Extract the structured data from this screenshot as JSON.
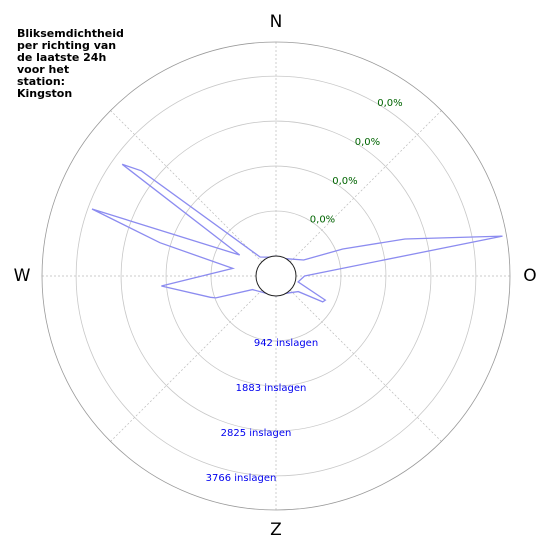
{
  "chart_data": {
    "type": "polar",
    "title_lines": [
      "Bliksemdichtheid",
      "per richting van",
      "de laatste 24h",
      "voor het",
      "station:",
      "Kingston"
    ],
    "directions": [
      {
        "value": 0,
        "label": "N"
      },
      {
        "value": 90,
        "label": "O"
      },
      {
        "value": 180,
        "label": "Z"
      },
      {
        "value": 270,
        "label": "W"
      }
    ],
    "x": [
      0,
      30,
      60,
      68,
      74,
      80,
      90,
      105,
      116,
      119,
      125,
      150,
      180,
      210,
      240,
      250,
      252,
      265,
      280,
      286,
      290,
      300,
      306,
      308,
      320,
      340
    ],
    "series": [
      {
        "color": "#8c8cf0",
        "values": [
          0,
          0,
          250,
          1090,
          2390,
          4396,
          180,
          60,
          730,
          700,
          150,
          0,
          0,
          0,
          150,
          920,
          1025,
          1990,
          500,
          2110,
          3680,
          460,
          3560,
          3160,
          100,
          0
        ]
      }
    ],
    "rlim": [
      0,
      4480
    ],
    "rticks": [
      {
        "value": 942,
        "label": "942 inslagen"
      },
      {
        "value": 1883,
        "label": "1883 inslagen"
      },
      {
        "value": 2825,
        "label": "2825 inslagen"
      },
      {
        "value": 3766,
        "label": "3766 inslagen"
      }
    ],
    "rtick_percent_labels": [
      "0,0%",
      "0,0%",
      "0,0%",
      "0,0%"
    ],
    "rtick_color": "#0000ee",
    "percent_color": "#006400",
    "grid": true
  }
}
